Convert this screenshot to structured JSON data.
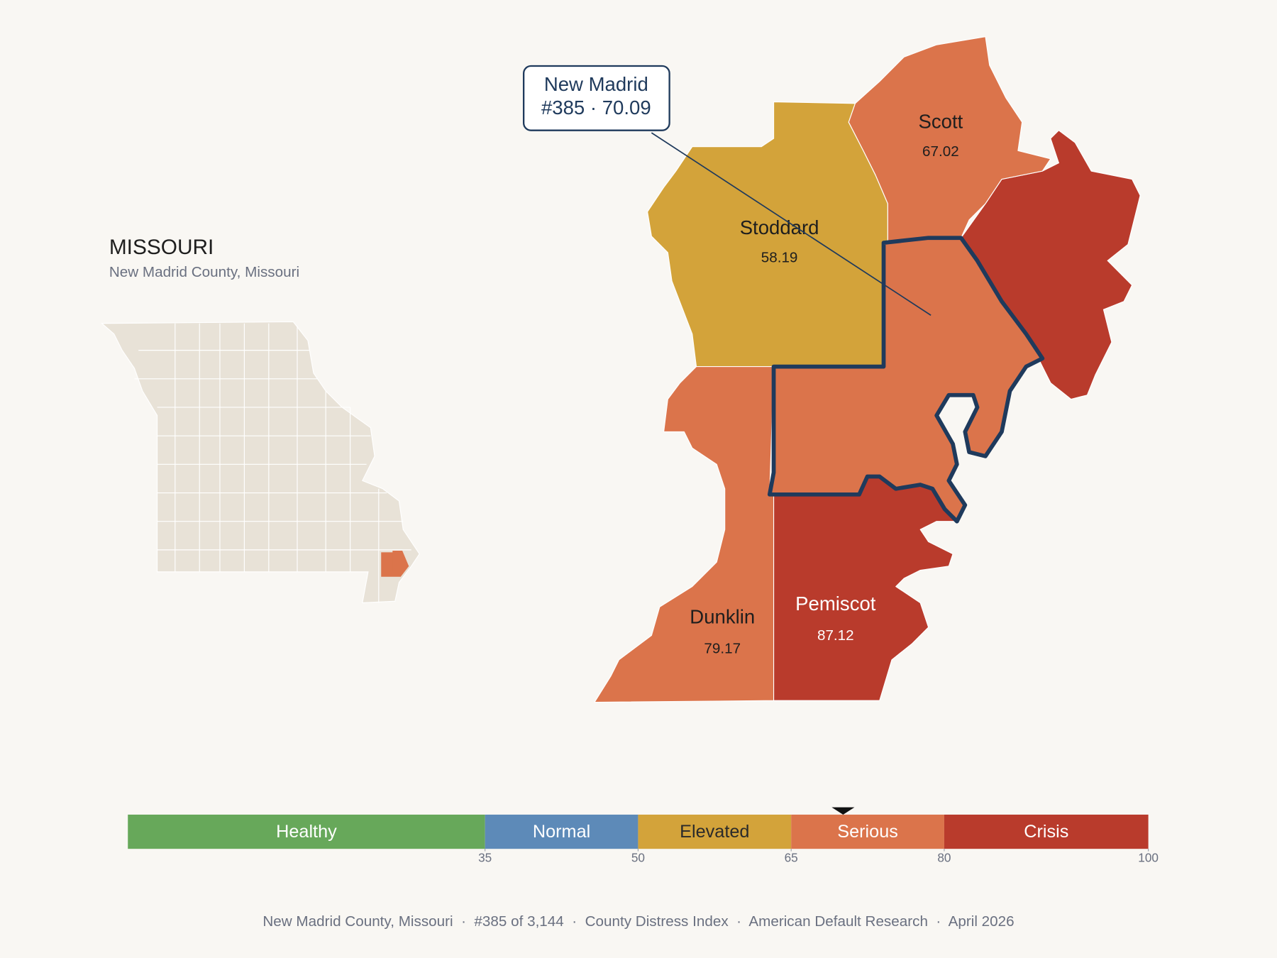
{
  "map": {
    "title": "MISSOURI",
    "subtitle": "New Madrid County, Missouri",
    "counties": [
      {
        "name": "Scott",
        "value": 67.02
      },
      {
        "name": "Stoddard",
        "value": 58.19
      },
      {
        "name": "Dunklin",
        "value": 79.17
      },
      {
        "name": "Pemiscot",
        "value": 87.12
      },
      {
        "name": "New Madrid",
        "value": 70.09,
        "label": "#385 · 70.09"
      }
    ]
  },
  "scale": {
    "xlim": [
      0,
      100
    ],
    "xticks": [
      35,
      50,
      65,
      80,
      100
    ],
    "bands": [
      {
        "name": "Healthy",
        "from": 0,
        "to": 35,
        "color": "#67a85a",
        "text_color": "#ffffff"
      },
      {
        "name": "Normal",
        "from": 35,
        "to": 50,
        "color": "#5d8ab8",
        "text_color": "#ffffff"
      },
      {
        "name": "Elevated",
        "from": 50,
        "to": 65,
        "color": "#d3a33a",
        "text_color": "#2a2a2a"
      },
      {
        "name": "Serious",
        "from": 65,
        "to": 80,
        "color": "#db744b",
        "text_color": "#ffffff"
      },
      {
        "name": "Crisis",
        "from": 80,
        "to": 100,
        "color": "#b93b2c",
        "text_color": "#ffffff"
      }
    ]
  },
  "footer": "New Madrid County, Missouri  ·  #385 of 3,144  ·  County Distress Index  ·  American Default Research  ·  April 2026"
}
